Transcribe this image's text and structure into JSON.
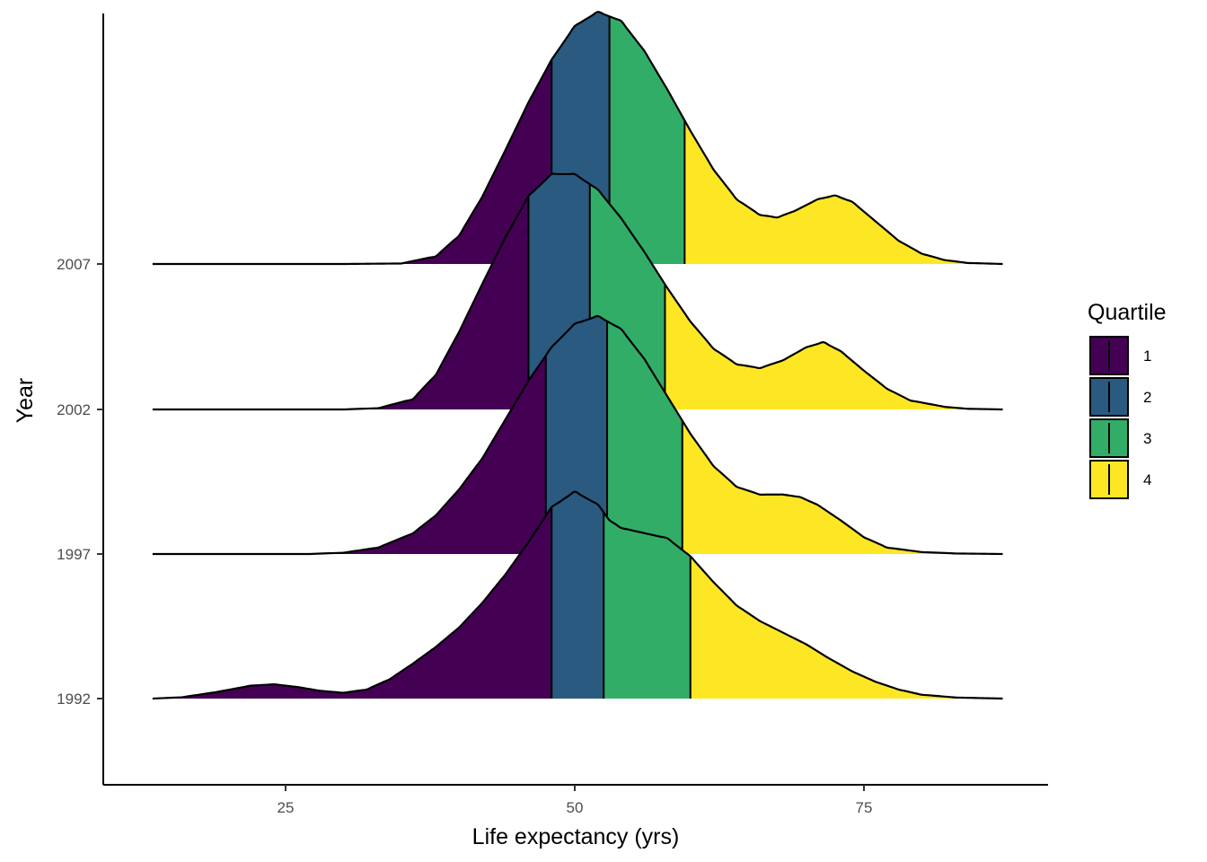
{
  "chart_data": {
    "type": "ridgeline",
    "xlabel": "Life expectancy (yrs)",
    "ylabel": "Year",
    "x_ticks": [
      25,
      50,
      75
    ],
    "xlim": [
      9.5,
      89
    ],
    "y_categories": [
      "1992",
      "1997",
      "2002",
      "2007"
    ],
    "legend": {
      "title": "Quartile",
      "position": "right",
      "entries": [
        {
          "label": "1",
          "color": "#440154"
        },
        {
          "label": "2",
          "color": "#2a5a80"
        },
        {
          "label": "3",
          "color": "#31ad68"
        },
        {
          "label": "4",
          "color": "#fde725"
        }
      ]
    },
    "grid": false,
    "series": [
      {
        "year": "2007",
        "quartiles": [
          48,
          53,
          59.5
        ],
        "density": [
          [
            13.5,
            0
          ],
          [
            30,
            0
          ],
          [
            35,
            0.004
          ],
          [
            38,
            0.06
          ],
          [
            40,
            0.22
          ],
          [
            42,
            0.52
          ],
          [
            44,
            0.88
          ],
          [
            46,
            1.25
          ],
          [
            48,
            1.58
          ],
          [
            50,
            1.84
          ],
          [
            52,
            1.95
          ],
          [
            54,
            1.88
          ],
          [
            56,
            1.65
          ],
          [
            58,
            1.35
          ],
          [
            60,
            1.03
          ],
          [
            62,
            0.73
          ],
          [
            64,
            0.5
          ],
          [
            66,
            0.38
          ],
          [
            67.5,
            0.36
          ],
          [
            69,
            0.41
          ],
          [
            71,
            0.5
          ],
          [
            72.5,
            0.53
          ],
          [
            74,
            0.48
          ],
          [
            76,
            0.33
          ],
          [
            78,
            0.18
          ],
          [
            80,
            0.08
          ],
          [
            82,
            0.03
          ],
          [
            84,
            0.008
          ],
          [
            87,
            0
          ]
        ]
      },
      {
        "year": "2002",
        "quartiles": [
          46,
          51.3,
          57.8
        ],
        "density": [
          [
            13.5,
            0
          ],
          [
            30,
            0
          ],
          [
            33,
            0.01
          ],
          [
            36,
            0.08
          ],
          [
            38,
            0.27
          ],
          [
            40,
            0.6
          ],
          [
            42,
            0.97
          ],
          [
            44,
            1.33
          ],
          [
            46,
            1.65
          ],
          [
            48,
            1.82
          ],
          [
            50,
            1.82
          ],
          [
            52,
            1.7
          ],
          [
            54,
            1.48
          ],
          [
            56,
            1.22
          ],
          [
            58,
            0.94
          ],
          [
            60,
            0.68
          ],
          [
            62,
            0.47
          ],
          [
            64,
            0.35
          ],
          [
            66,
            0.32
          ],
          [
            68,
            0.38
          ],
          [
            70,
            0.48
          ],
          [
            71.5,
            0.52
          ],
          [
            73,
            0.45
          ],
          [
            75,
            0.3
          ],
          [
            77,
            0.16
          ],
          [
            79,
            0.07
          ],
          [
            82,
            0.02
          ],
          [
            84,
            0.005
          ],
          [
            87,
            0
          ]
        ]
      },
      {
        "year": "1997",
        "quartiles": [
          47.5,
          52.8,
          59.3
        ],
        "density": [
          [
            13.5,
            0
          ],
          [
            27,
            0
          ],
          [
            30,
            0.01
          ],
          [
            33,
            0.05
          ],
          [
            36,
            0.16
          ],
          [
            38,
            0.3
          ],
          [
            40,
            0.5
          ],
          [
            42,
            0.74
          ],
          [
            44,
            1.04
          ],
          [
            46,
            1.34
          ],
          [
            48,
            1.6
          ],
          [
            50,
            1.78
          ],
          [
            52,
            1.84
          ],
          [
            54,
            1.74
          ],
          [
            56,
            1.51
          ],
          [
            58,
            1.22
          ],
          [
            60,
            0.93
          ],
          [
            62,
            0.68
          ],
          [
            64,
            0.52
          ],
          [
            66,
            0.46
          ],
          [
            68,
            0.46
          ],
          [
            69.5,
            0.44
          ],
          [
            71,
            0.38
          ],
          [
            73,
            0.26
          ],
          [
            75,
            0.13
          ],
          [
            77,
            0.05
          ],
          [
            80,
            0.015
          ],
          [
            83,
            0.004
          ],
          [
            87,
            0
          ]
        ]
      },
      {
        "year": "1992",
        "quartiles": [
          48,
          52.5,
          60
        ],
        "density": [
          [
            13.5,
            0
          ],
          [
            16,
            0.01
          ],
          [
            19,
            0.05
          ],
          [
            22,
            0.1
          ],
          [
            24,
            0.11
          ],
          [
            26,
            0.09
          ],
          [
            28,
            0.06
          ],
          [
            30,
            0.045
          ],
          [
            32,
            0.07
          ],
          [
            34,
            0.15
          ],
          [
            36,
            0.27
          ],
          [
            38,
            0.4
          ],
          [
            40,
            0.55
          ],
          [
            42,
            0.74
          ],
          [
            44,
            0.96
          ],
          [
            46,
            1.21
          ],
          [
            48,
            1.48
          ],
          [
            50,
            1.6
          ],
          [
            52,
            1.5
          ],
          [
            53,
            1.38
          ],
          [
            54,
            1.32
          ],
          [
            56,
            1.28
          ],
          [
            58,
            1.24
          ],
          [
            60,
            1.1
          ],
          [
            62,
            0.9
          ],
          [
            64,
            0.72
          ],
          [
            66,
            0.6
          ],
          [
            68,
            0.51
          ],
          [
            70,
            0.42
          ],
          [
            72,
            0.31
          ],
          [
            74,
            0.21
          ],
          [
            76,
            0.13
          ],
          [
            78,
            0.07
          ],
          [
            80,
            0.03
          ],
          [
            83,
            0.008
          ],
          [
            87,
            0
          ]
        ]
      }
    ]
  }
}
